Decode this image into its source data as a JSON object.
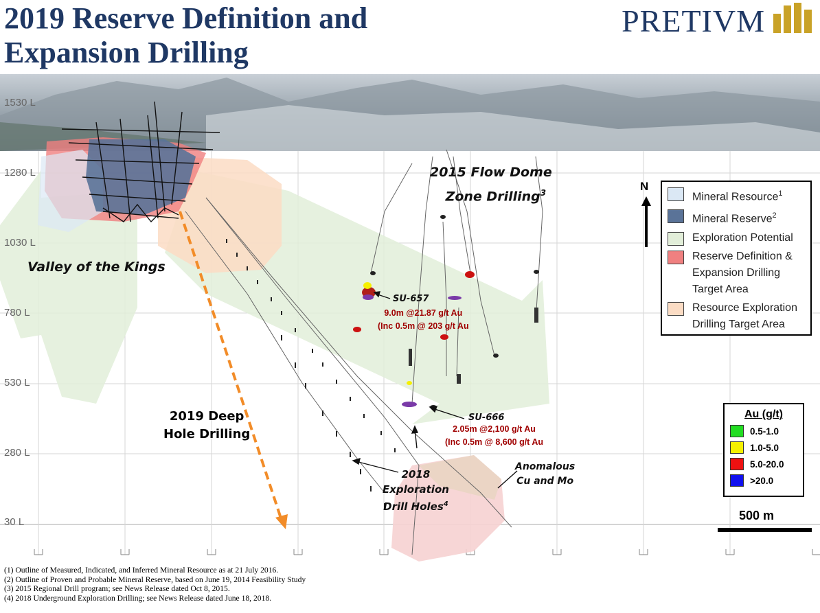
{
  "title": {
    "line1": "2019 Reserve Definition and",
    "line2": "Expansion Drilling"
  },
  "brand": {
    "name": "PRETIVM",
    "color": "#1f3864",
    "accent": "#c9a227"
  },
  "levels": [
    "1530 L",
    "1280 L",
    "1030 L",
    "780 L",
    "530 L",
    "280 L",
    "30 L"
  ],
  "labels": {
    "valley": "Valley of the Kings",
    "flow_dome_line1": "2015 Flow Dome",
    "flow_dome_line2": "Zone Drilling",
    "flow_dome_sup": "3",
    "deep_line1": "2019 Deep",
    "deep_line2": "Hole Drilling",
    "su657": "SU-657",
    "su657_int": "9.0m @21.87 g/t Au",
    "su657_inc": "(Inc 0.5m @ 203 g/t Au",
    "su666": "SU-666",
    "su666_int": "2.05m @2,100 g/t Au",
    "su666_inc": "(Inc 0.5m @ 8,600 g/t Au",
    "expl_line1": "2018",
    "expl_line2": "Exploration",
    "expl_line3": "Drill Holes",
    "expl_sup": "4",
    "anom_line1": "Anomalous",
    "anom_line2": "Cu and Mo",
    "north": "N",
    "scale": "500 m"
  },
  "legend": [
    {
      "label": "Mineral Resource",
      "sup": "1",
      "color": "#dbe8f5"
    },
    {
      "label": "Mineral Reserve",
      "sup": "2",
      "color": "#5a7398"
    },
    {
      "label": "Exploration Potential",
      "sup": "",
      "color": "#e2eed9"
    },
    {
      "label": "Reserve Definition & Expansion Drilling Target Area",
      "sup": "",
      "color": "#f08080"
    },
    {
      "label": "Resource Exploration Drilling Target Area",
      "sup": "",
      "color": "#fbdcc4"
    }
  ],
  "au_legend": {
    "title": "Au (g/t)",
    "items": [
      {
        "label": "0.5-1.0",
        "color": "#22dd22"
      },
      {
        "label": "1.0-5.0",
        "color": "#f5f000"
      },
      {
        "label": "5.0-20.0",
        "color": "#ee1111"
      },
      {
        "label": ">20.0",
        "color": "#1010ee"
      }
    ]
  },
  "footnotes": [
    "(1) Outline of Measured, Indicated, and Inferred Mineral Resource as at 21 July 2016.",
    "(2) Outline of Proven and Probable Mineral Reserve, based on June 19, 2014 Feasibility Study",
    "(3) 2015 Regional Drill program; see News Release dated Oct 8, 2015.",
    "(4) 2018 Underground Exploration Drilling; see News Release dated June 18, 2018."
  ]
}
